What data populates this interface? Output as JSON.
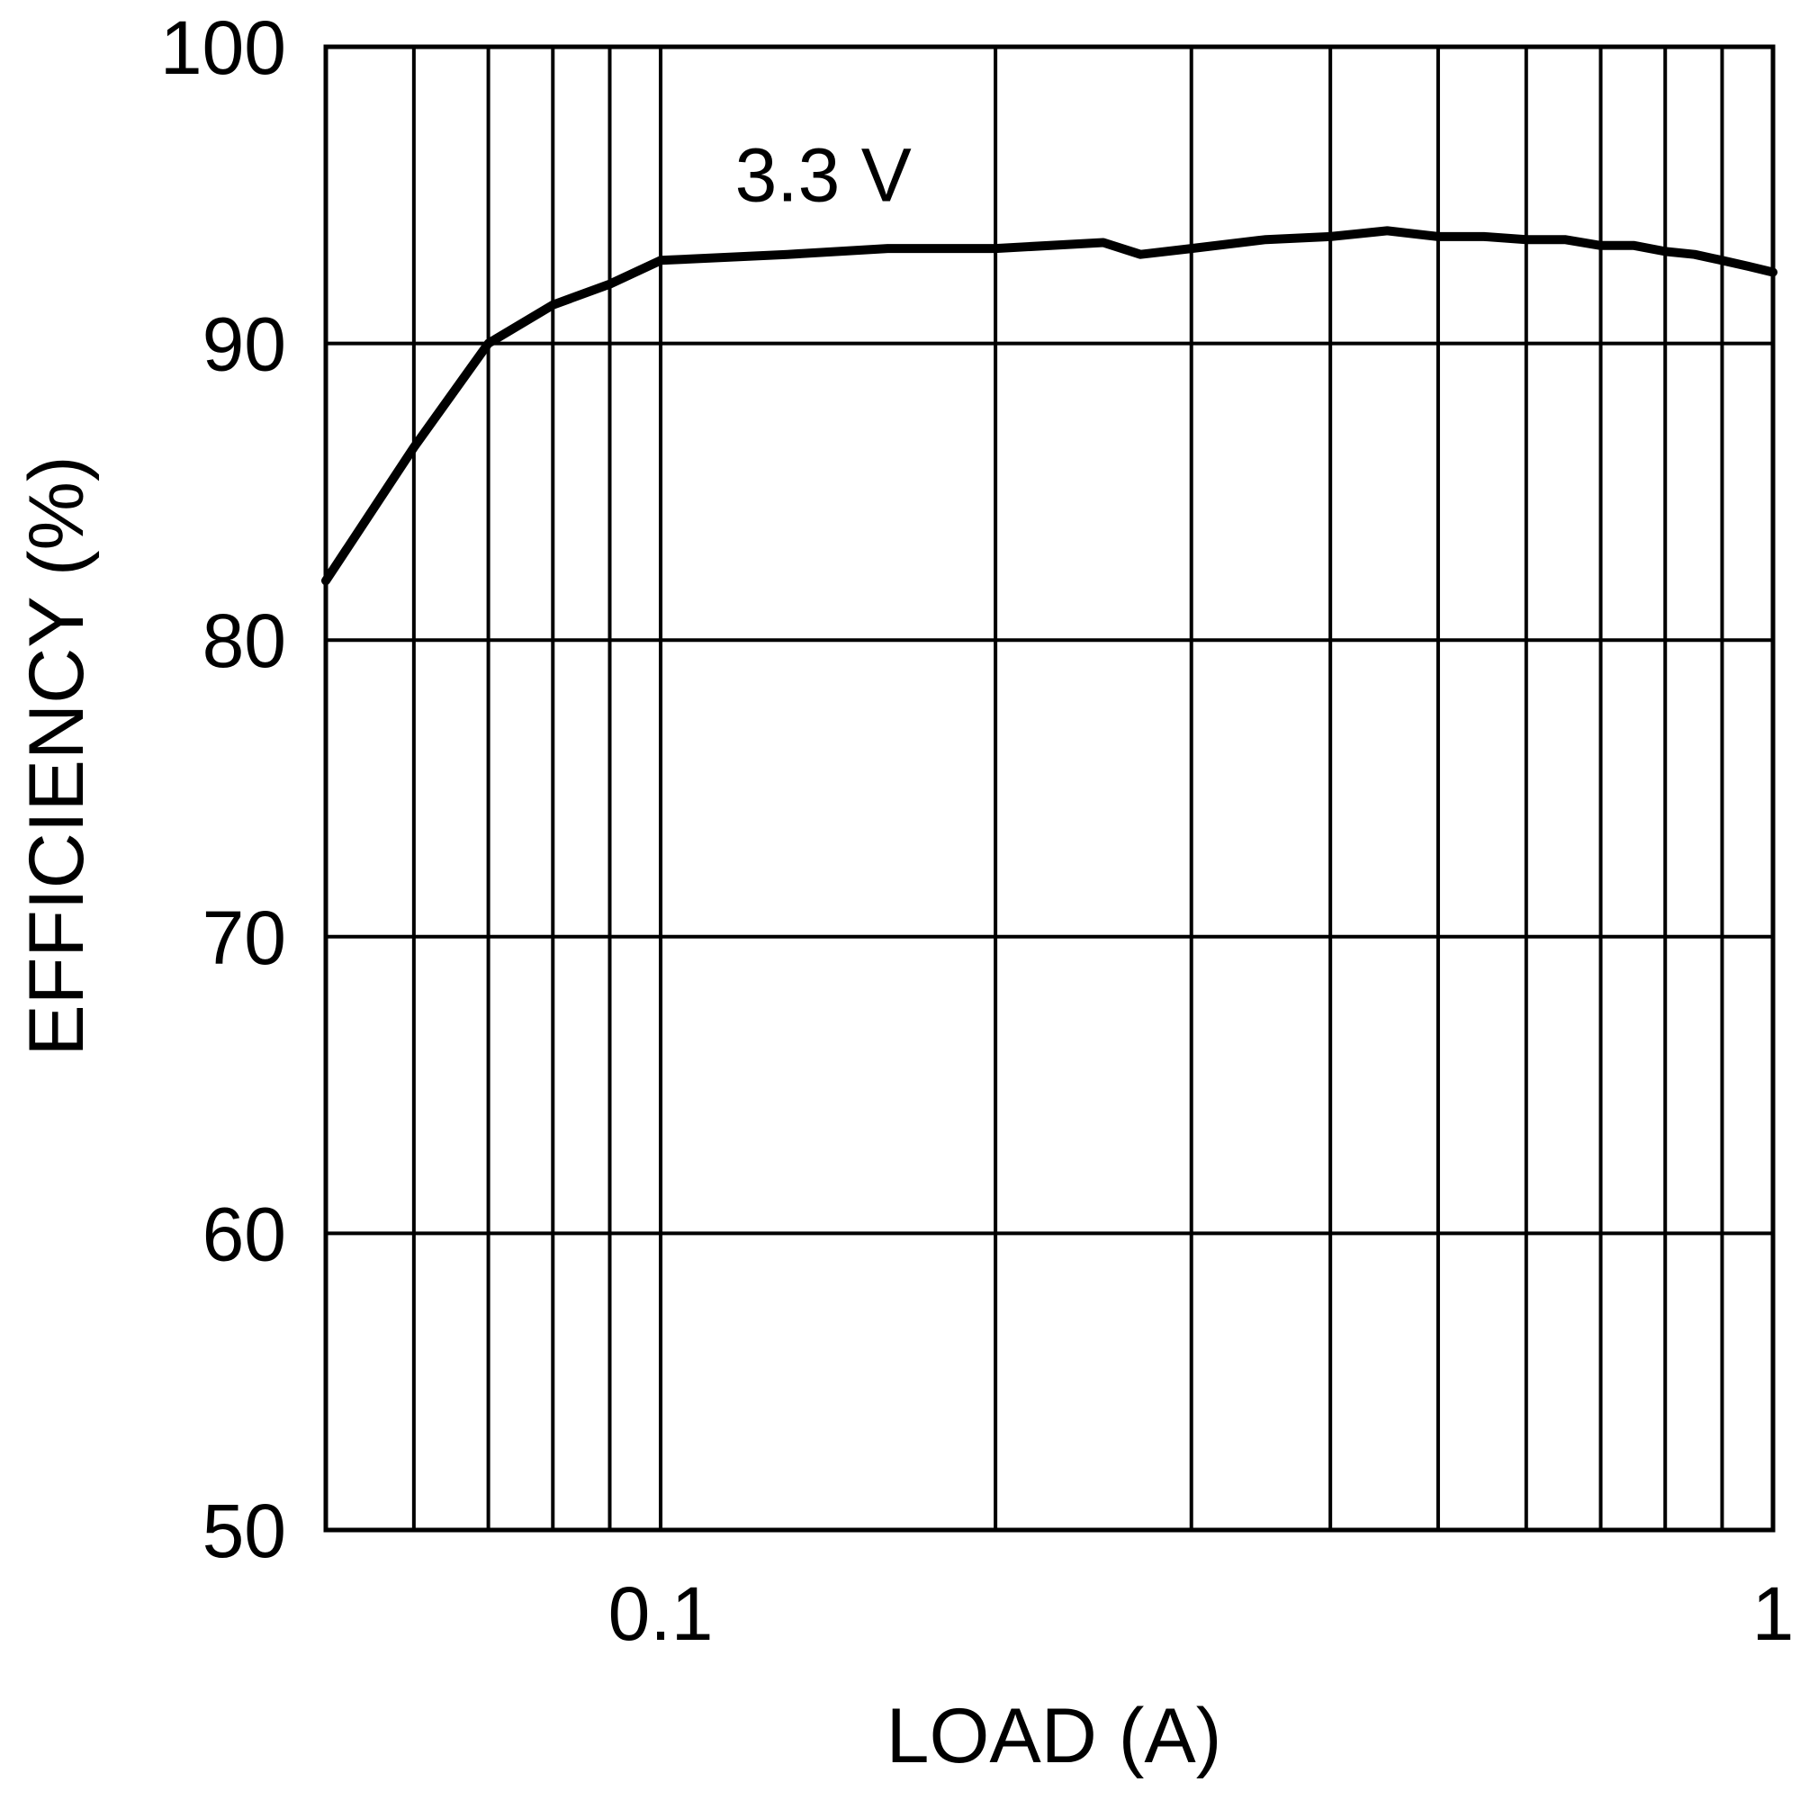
{
  "chart_data": {
    "type": "line",
    "xlabel": "LOAD (A)",
    "ylabel": "EFFICIENCY (%)",
    "xscale": "log",
    "xlim": [
      0.05,
      1
    ],
    "ylim": [
      50,
      100
    ],
    "x_tick_labels": [
      {
        "value": 0.1,
        "label": "0.1"
      },
      {
        "value": 1,
        "label": "1"
      }
    ],
    "y_ticks": [
      {
        "value": 50,
        "label": "50"
      },
      {
        "value": 60,
        "label": "60"
      },
      {
        "value": 70,
        "label": "70"
      },
      {
        "value": 80,
        "label": "80"
      },
      {
        "value": 90,
        "label": "90"
      },
      {
        "value": 100,
        "label": "100"
      }
    ],
    "x_gridlines": [
      0.06,
      0.07,
      0.08,
      0.09,
      0.1,
      0.2,
      0.3,
      0.4,
      0.5,
      0.6,
      0.7,
      0.8,
      0.9
    ],
    "y_gridlines": [
      60,
      70,
      80,
      90
    ],
    "grid": true,
    "series": [
      {
        "name": "3.3 V",
        "color": "#000000",
        "x": [
          0.05,
          0.06,
          0.07,
          0.08,
          0.09,
          0.1,
          0.13,
          0.16,
          0.2,
          0.25,
          0.27,
          0.3,
          0.35,
          0.4,
          0.45,
          0.5,
          0.55,
          0.6,
          0.65,
          0.7,
          0.75,
          0.8,
          0.85,
          0.9,
          0.95,
          1.0
        ],
        "y": [
          82.0,
          86.5,
          90.0,
          91.3,
          92.0,
          92.8,
          93.0,
          93.2,
          93.2,
          93.4,
          93.0,
          93.2,
          93.5,
          93.6,
          93.8,
          93.6,
          93.6,
          93.5,
          93.5,
          93.3,
          93.3,
          93.1,
          93.0,
          92.8,
          92.6,
          92.4
        ]
      }
    ],
    "annotations": [
      {
        "text": "3.3 V",
        "x": 0.14,
        "y": 95.7
      }
    ]
  }
}
